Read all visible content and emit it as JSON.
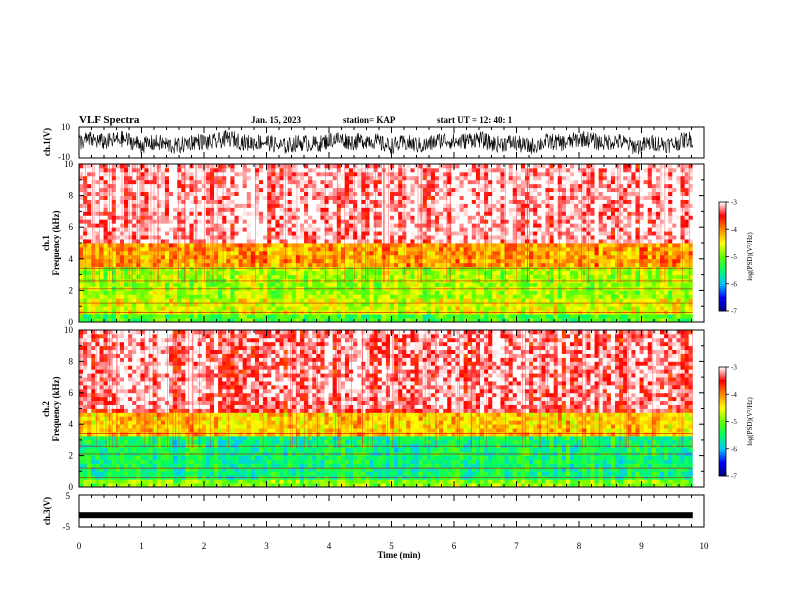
{
  "header": {
    "title": "VLF Spectra",
    "date": "Jan. 15, 2023",
    "station": "station= KAP",
    "start": "start  UT  =   12: 40: 1"
  },
  "chart_data": [
    {
      "type": "line",
      "name_label": "ch.1(V)",
      "ylim": [
        -10,
        10
      ],
      "yticks": [
        "10",
        "-10"
      ],
      "xlim": [
        0,
        10
      ],
      "description_values": "dense noisy waveform, amplitude mostly between -4 and 8 V"
    },
    {
      "type": "heatmap",
      "ylabel_top": "ch.1",
      "ylabel": "Frequency  (kHz)",
      "ylim": [
        0,
        10
      ],
      "yticks": [
        "0",
        "2",
        "4",
        "6",
        "8",
        "10"
      ],
      "xlim": [
        0,
        10
      ],
      "data_end_min": 9.82,
      "bands": [
        {
          "from_khz": 0,
          "to_khz": 0.4,
          "level": -5.2
        },
        {
          "from_khz": 0.4,
          "to_khz": 1.5,
          "level": -4.6
        },
        {
          "from_khz": 1.5,
          "to_khz": 3.6,
          "level": -4.8
        },
        {
          "from_khz": 3.6,
          "to_khz": 5.0,
          "level": -4.1
        },
        {
          "from_khz": 5.0,
          "to_khz": 10,
          "level": -3.3
        }
      ],
      "colorbar": {
        "label": "log(PSD)(V²/Hz)",
        "ticks": [
          "-3",
          "-4",
          "-5",
          "-6",
          "-7"
        ],
        "range": [
          -7,
          -3
        ]
      }
    },
    {
      "type": "heatmap",
      "ylabel_top": "ch.2",
      "ylabel": "Frequency  (kHz)",
      "ylim": [
        0,
        10
      ],
      "yticks": [
        "0",
        "2",
        "4",
        "6",
        "8",
        "10"
      ],
      "xlim": [
        0,
        10
      ],
      "data_end_min": 9.82,
      "bands": [
        {
          "from_khz": 0,
          "to_khz": 0.6,
          "level": -4.9
        },
        {
          "from_khz": 0.6,
          "to_khz": 3.2,
          "level": -5.5
        },
        {
          "from_khz": 3.2,
          "to_khz": 4.8,
          "level": -4.3
        },
        {
          "from_khz": 4.8,
          "to_khz": 10,
          "level": -3.4
        }
      ],
      "colorbar": {
        "label": "log(PSD)(V²/Hz)",
        "ticks": [
          "-3",
          "-4",
          "-5",
          "-6",
          "-7"
        ],
        "range": [
          -7,
          -3
        ]
      }
    },
    {
      "type": "line",
      "name_label": "ch.3(V)",
      "ylim": [
        -5,
        5
      ],
      "yticks": [
        "5",
        "-5"
      ],
      "xlim": [
        0,
        10
      ],
      "level_v": -1.3
    }
  ],
  "xaxis": {
    "label": "Time  (min)",
    "ticks": [
      "0",
      "1",
      "2",
      "3",
      "4",
      "5",
      "6",
      "7",
      "8",
      "9",
      "10"
    ]
  },
  "colors": {
    "scale": [
      "#000078",
      "#0000ff",
      "#00c8ff",
      "#00ff64",
      "#64ff00",
      "#ffff00",
      "#ff8c00",
      "#ff0000",
      "#ffffff"
    ]
  }
}
